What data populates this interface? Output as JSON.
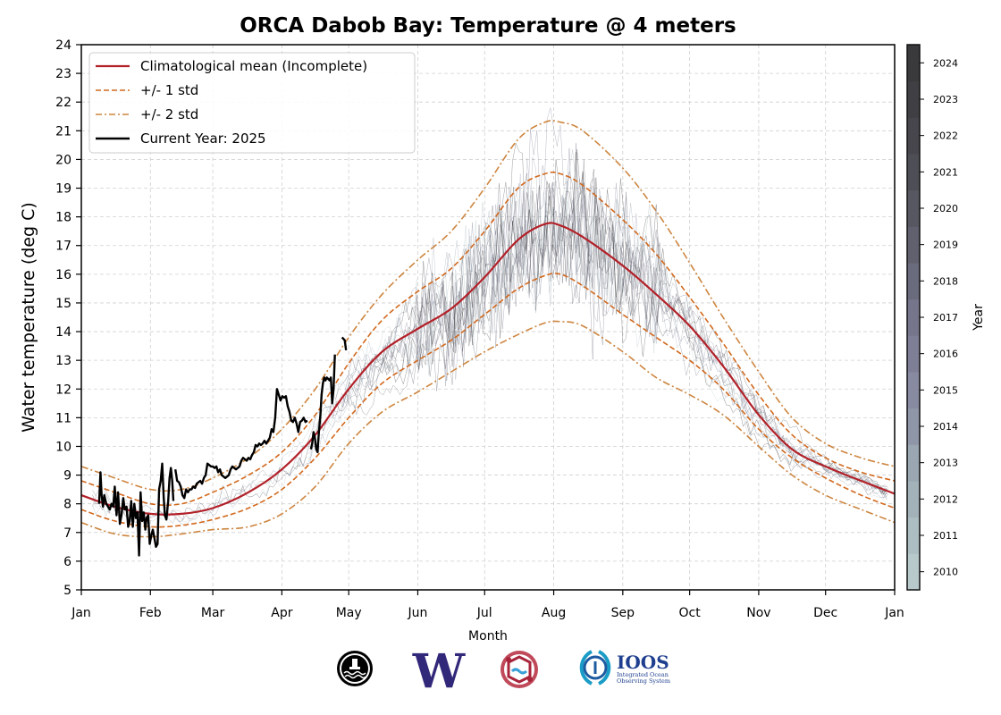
{
  "chart_data": {
    "type": "line",
    "title": "ORCA Dabob Bay: Temperature @ 4 meters",
    "xlabel": "Month",
    "ylabel": "Water temperature (deg C)",
    "ylim": [
      5,
      24
    ],
    "xlim_days": [
      0,
      365
    ],
    "grid": true,
    "legend_position": "top-left",
    "x_ticks": [
      {
        "label": "Jan",
        "day": 0
      },
      {
        "label": "Feb",
        "day": 31
      },
      {
        "label": "Mar",
        "day": 59
      },
      {
        "label": "Apr",
        "day": 90
      },
      {
        "label": "May",
        "day": 120
      },
      {
        "label": "Jun",
        "day": 151
      },
      {
        "label": "Jul",
        "day": 181
      },
      {
        "label": "Aug",
        "day": 212
      },
      {
        "label": "Sep",
        "day": 243
      },
      {
        "label": "Oct",
        "day": 273
      },
      {
        "label": "Nov",
        "day": 304
      },
      {
        "label": "Dec",
        "day": 334
      },
      {
        "label": "Jan",
        "day": 365
      }
    ],
    "y_ticks": [
      5,
      6,
      7,
      8,
      9,
      10,
      11,
      12,
      13,
      14,
      15,
      16,
      17,
      18,
      19,
      20,
      21,
      22,
      23,
      24
    ],
    "legend": [
      {
        "label": "Climatological mean (Incomplete)",
        "style": "solid",
        "color": "#b22028"
      },
      {
        "label": "+/- 1 std",
        "style": "dashed",
        "color": "#d2691e"
      },
      {
        "label": "+/- 2 std",
        "style": "dashdot",
        "color": "#cd853f"
      },
      {
        "label": "Current Year: 2025",
        "style": "solid",
        "color": "#000000"
      }
    ],
    "climatology_days": [
      0,
      15,
      31,
      45,
      59,
      75,
      90,
      105,
      120,
      135,
      151,
      166,
      181,
      196,
      208,
      215,
      225,
      243,
      258,
      273,
      288,
      304,
      319,
      334,
      350,
      365
    ],
    "series": [
      {
        "name": "Climatological mean (Incomplete)",
        "color": "#b22028",
        "style": "solid",
        "values": [
          8.3,
          7.9,
          7.65,
          7.65,
          7.85,
          8.4,
          9.2,
          10.4,
          12.0,
          13.3,
          14.1,
          14.8,
          15.9,
          17.2,
          17.75,
          17.7,
          17.3,
          16.3,
          15.3,
          14.2,
          12.8,
          11.1,
          9.9,
          9.3,
          8.8,
          8.35
        ]
      },
      {
        "name": "+1 std",
        "color": "#d2691e",
        "style": "dashed",
        "values": [
          8.8,
          8.4,
          8.0,
          8.0,
          8.4,
          9.0,
          9.8,
          11.1,
          12.9,
          14.4,
          15.4,
          16.2,
          17.5,
          19.0,
          19.5,
          19.5,
          19.1,
          17.9,
          16.7,
          15.2,
          13.6,
          11.8,
          10.4,
          9.6,
          9.1,
          8.8
        ]
      },
      {
        "name": "-1 std",
        "color": "#d2691e",
        "style": "dashed",
        "values": [
          7.8,
          7.4,
          7.2,
          7.25,
          7.45,
          7.85,
          8.5,
          9.6,
          11.0,
          12.2,
          13.0,
          13.7,
          14.6,
          15.5,
          15.95,
          16.0,
          15.6,
          14.6,
          13.8,
          13.0,
          12.0,
          10.6,
          9.6,
          8.9,
          8.3,
          7.85
        ]
      },
      {
        "name": "+2 std",
        "color": "#cd853f",
        "style": "dashdot",
        "values": [
          9.3,
          8.9,
          8.5,
          8.5,
          8.9,
          9.6,
          10.6,
          12.0,
          13.8,
          15.3,
          16.5,
          17.5,
          19.0,
          20.7,
          21.3,
          21.3,
          21.0,
          19.7,
          18.2,
          16.4,
          14.5,
          12.6,
          11.0,
          10.1,
          9.6,
          9.3
        ]
      },
      {
        "name": "-2 std",
        "color": "#cd853f",
        "style": "dashdot",
        "values": [
          7.35,
          6.95,
          6.85,
          6.95,
          7.1,
          7.2,
          7.65,
          8.6,
          10.1,
          11.2,
          11.9,
          12.6,
          13.3,
          13.9,
          14.3,
          14.35,
          14.2,
          13.3,
          12.4,
          11.8,
          11.1,
          10.0,
          9.0,
          8.3,
          7.8,
          7.35
        ]
      },
      {
        "name": "Current Year: 2025",
        "color": "#000000",
        "style": "solid",
        "segments": [
          {
            "days": [
              8,
              8.6,
              9.1,
              9.7,
              10.3,
              11.2,
              12.0,
              12.8,
              13.5,
              14.3,
              15.0,
              15.8,
              16.5,
              17.3,
              18.0,
              18.8,
              19.5,
              20.3,
              21.0,
              21.7,
              22.4,
              23.1,
              23.8,
              24.5,
              25.2,
              25.9,
              26.6,
              27.3,
              28.0,
              28.7,
              29.3,
              30.0,
              30.7,
              31.4,
              32.1,
              32.8,
              33.5,
              34.2,
              34.9,
              35.6,
              36.3,
              37.0,
              37.5,
              38.2,
              39.0,
              39.6,
              40.2,
              40.8,
              41.3
            ],
            "values": [
              8.0,
              9.1,
              8.3,
              7.9,
              8.3,
              8.0,
              7.9,
              7.8,
              8.0,
              7.9,
              8.6,
              7.6,
              8.4,
              7.3,
              7.6,
              8.2,
              7.8,
              7.9,
              7.2,
              7.4,
              8.1,
              7.2,
              8.0,
              7.5,
              7.7,
              6.2,
              8.4,
              7.4,
              7.7,
              7.1,
              7.5,
              7.6,
              6.6,
              6.9,
              7.1,
              6.8,
              6.5,
              6.6,
              8.5,
              8.8,
              9.4,
              8.2,
              7.6,
              7.45,
              8.1,
              8.9,
              9.25,
              8.8,
              8.1
            ]
          },
          {
            "days": [
              42.2,
              43.0,
              43.8,
              44.6,
              45.4,
              46.2,
              47.0,
              47.8,
              48.6,
              49.4,
              50.2,
              51.0,
              51.8,
              52.6,
              53.4,
              54.2,
              55.0,
              55.8,
              56.6,
              57.4,
              58.2,
              59.0,
              59.8,
              60.6,
              61.4,
              62.2,
              63.0,
              63.8,
              64.6,
              65.4,
              66.2,
              67.0,
              67.8,
              68.6,
              69.4,
              70.2,
              71.0,
              71.8,
              72.6,
              73.4,
              74.2,
              75.0,
              75.8,
              76.6,
              77.4,
              78.2,
              79.0,
              79.8,
              80.6,
              81.4,
              82.2,
              83.0,
              83.8,
              84.6,
              85.4,
              86.2,
              87.0,
              87.8,
              88.6,
              89.4,
              90.2,
              91.0,
              91.8,
              92.6,
              93.4,
              94.2,
              95.0,
              95.8,
              96.6,
              97.4,
              98.2,
              99.0,
              99.8,
              100.6,
              101.4
            ],
            "values": [
              9.2,
              8.8,
              8.75,
              8.6,
              8.3,
              8.2,
              8.5,
              8.4,
              8.5,
              8.5,
              8.6,
              8.55,
              8.7,
              8.75,
              8.8,
              8.7,
              8.9,
              9.0,
              9.4,
              9.35,
              9.3,
              9.3,
              9.25,
              9.3,
              9.1,
              9.2,
              9.0,
              8.95,
              8.9,
              8.95,
              9.0,
              9.2,
              9.3,
              9.25,
              9.2,
              9.25,
              9.3,
              9.5,
              9.6,
              9.55,
              9.5,
              9.6,
              9.55,
              9.7,
              9.8,
              10.05,
              10.0,
              10.1,
              10.05,
              10.1,
              10.2,
              10.1,
              10.2,
              10.3,
              10.6,
              10.5,
              11.0,
              12.0,
              11.8,
              11.6,
              11.75,
              11.7,
              11.75,
              11.4,
              11.2,
              10.9,
              10.85,
              11.0,
              10.8,
              10.5,
              10.85,
              10.9,
              11.0,
              10.85,
              10.9
            ]
          },
          {
            "days": [
              103.0,
              103.6,
              104.2,
              104.8,
              105.4,
              106.0,
              106.6,
              107.2,
              107.8,
              108.4,
              109.0,
              109.6,
              110.2,
              110.8,
              111.4,
              112.0,
              112.6,
              113.2,
              113.8
            ],
            "values": [
              9.9,
              10.1,
              10.5,
              10.3,
              9.9,
              9.8,
              10.5,
              11.0,
              11.8,
              12.2,
              12.4,
              12.3,
              12.4,
              12.35,
              12.3,
              12.4,
              11.5,
              12.0,
              13.2
            ]
          },
          {
            "days": [
              117.0,
              117.6,
              118.2,
              118.8
            ],
            "values": [
              13.8,
              13.75,
              13.7,
              13.35
            ]
          }
        ]
      }
    ],
    "historical_years": {
      "label": "Year",
      "years": [
        2010,
        2011,
        2012,
        2013,
        2014,
        2015,
        2016,
        2017,
        2018,
        2019,
        2020,
        2021,
        2022,
        2023,
        2024
      ],
      "colors": [
        "#b8c9cb",
        "#adbec2",
        "#a3b2b9",
        "#9aa6b1",
        "#8f96a8",
        "#878aa0",
        "#7e7f97",
        "#75768b",
        "#6a6b7c",
        "#60606e",
        "#575762",
        "#4e4e56",
        "#46464c",
        "#404044",
        "#3a3a3d"
      ]
    }
  },
  "logos": [
    {
      "name": "nanoos-buoy-logo"
    },
    {
      "name": "uw-logo",
      "text": "W"
    },
    {
      "name": "tribal-logo"
    },
    {
      "name": "ioos-logo",
      "text": "IOOS",
      "subtext": [
        "Integrated Ocean",
        "Observing System"
      ]
    }
  ]
}
